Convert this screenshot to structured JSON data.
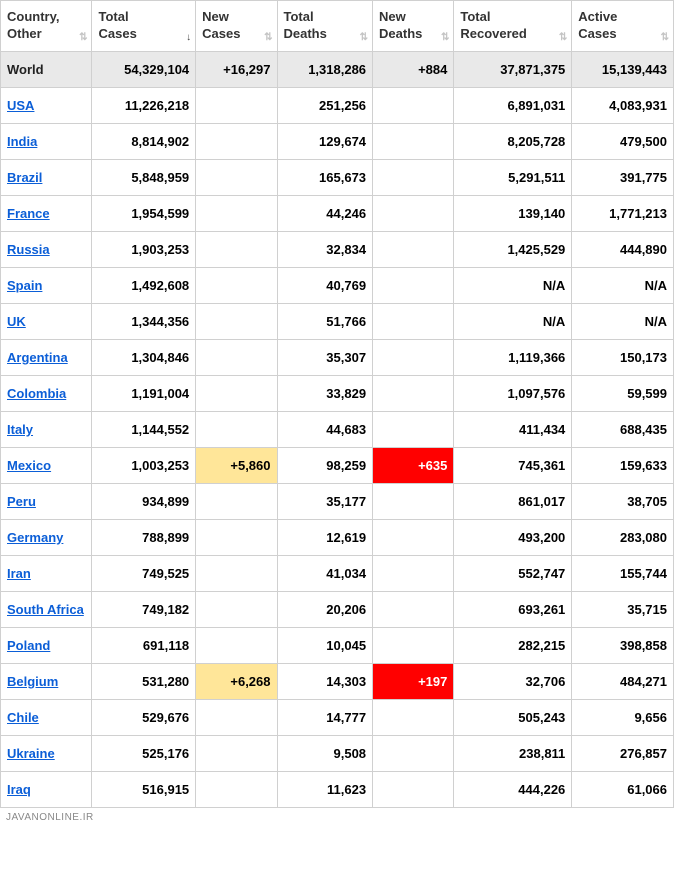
{
  "columns": [
    {
      "label": "Country,\nOther",
      "sort": "none"
    },
    {
      "label": "Total\nCases",
      "sort": "desc"
    },
    {
      "label": "New\nCases",
      "sort": "none"
    },
    {
      "label": "Total\nDeaths",
      "sort": "none"
    },
    {
      "label": "New\nDeaths",
      "sort": "none"
    },
    {
      "label": "Total\nRecovered",
      "sort": "none"
    },
    {
      "label": "Active\nCases",
      "sort": "none"
    }
  ],
  "world": {
    "country": "World",
    "total_cases": "54,329,104",
    "new_cases": "+16,297",
    "total_deaths": "1,318,286",
    "new_deaths": "+884",
    "total_recovered": "37,871,375",
    "active_cases": "15,139,443"
  },
  "rows": [
    {
      "country": "USA",
      "total_cases": "11,226,218",
      "new_cases": "",
      "total_deaths": "251,256",
      "new_deaths": "",
      "total_recovered": "6,891,031",
      "active_cases": "4,083,931"
    },
    {
      "country": "India",
      "total_cases": "8,814,902",
      "new_cases": "",
      "total_deaths": "129,674",
      "new_deaths": "",
      "total_recovered": "8,205,728",
      "active_cases": "479,500"
    },
    {
      "country": "Brazil",
      "total_cases": "5,848,959",
      "new_cases": "",
      "total_deaths": "165,673",
      "new_deaths": "",
      "total_recovered": "5,291,511",
      "active_cases": "391,775"
    },
    {
      "country": "France",
      "total_cases": "1,954,599",
      "new_cases": "",
      "total_deaths": "44,246",
      "new_deaths": "",
      "total_recovered": "139,140",
      "active_cases": "1,771,213"
    },
    {
      "country": "Russia",
      "total_cases": "1,903,253",
      "new_cases": "",
      "total_deaths": "32,834",
      "new_deaths": "",
      "total_recovered": "1,425,529",
      "active_cases": "444,890"
    },
    {
      "country": "Spain",
      "total_cases": "1,492,608",
      "new_cases": "",
      "total_deaths": "40,769",
      "new_deaths": "",
      "total_recovered": "N/A",
      "active_cases": "N/A"
    },
    {
      "country": "UK",
      "total_cases": "1,344,356",
      "new_cases": "",
      "total_deaths": "51,766",
      "new_deaths": "",
      "total_recovered": "N/A",
      "active_cases": "N/A"
    },
    {
      "country": "Argentina",
      "total_cases": "1,304,846",
      "new_cases": "",
      "total_deaths": "35,307",
      "new_deaths": "",
      "total_recovered": "1,119,366",
      "active_cases": "150,173"
    },
    {
      "country": "Colombia",
      "total_cases": "1,191,004",
      "new_cases": "",
      "total_deaths": "33,829",
      "new_deaths": "",
      "total_recovered": "1,097,576",
      "active_cases": "59,599"
    },
    {
      "country": "Italy",
      "total_cases": "1,144,552",
      "new_cases": "",
      "total_deaths": "44,683",
      "new_deaths": "",
      "total_recovered": "411,434",
      "active_cases": "688,435"
    },
    {
      "country": "Mexico",
      "total_cases": "1,003,253",
      "new_cases": "+5,860",
      "new_cases_hl": "yellow",
      "total_deaths": "98,259",
      "new_deaths": "+635",
      "new_deaths_hl": "red",
      "total_recovered": "745,361",
      "active_cases": "159,633"
    },
    {
      "country": "Peru",
      "total_cases": "934,899",
      "new_cases": "",
      "total_deaths": "35,177",
      "new_deaths": "",
      "total_recovered": "861,017",
      "active_cases": "38,705"
    },
    {
      "country": "Germany",
      "total_cases": "788,899",
      "new_cases": "",
      "total_deaths": "12,619",
      "new_deaths": "",
      "total_recovered": "493,200",
      "active_cases": "283,080"
    },
    {
      "country": "Iran",
      "total_cases": "749,525",
      "new_cases": "",
      "total_deaths": "41,034",
      "new_deaths": "",
      "total_recovered": "552,747",
      "active_cases": "155,744"
    },
    {
      "country": "South Africa",
      "total_cases": "749,182",
      "new_cases": "",
      "total_deaths": "20,206",
      "new_deaths": "",
      "total_recovered": "693,261",
      "active_cases": "35,715"
    },
    {
      "country": "Poland",
      "total_cases": "691,118",
      "new_cases": "",
      "total_deaths": "10,045",
      "new_deaths": "",
      "total_recovered": "282,215",
      "active_cases": "398,858"
    },
    {
      "country": "Belgium",
      "total_cases": "531,280",
      "new_cases": "+6,268",
      "new_cases_hl": "yellow",
      "total_deaths": "14,303",
      "new_deaths": "+197",
      "new_deaths_hl": "red",
      "total_recovered": "32,706",
      "active_cases": "484,271"
    },
    {
      "country": "Chile",
      "total_cases": "529,676",
      "new_cases": "",
      "total_deaths": "14,777",
      "new_deaths": "",
      "total_recovered": "505,243",
      "active_cases": "9,656"
    },
    {
      "country": "Ukraine",
      "total_cases": "525,176",
      "new_cases": "",
      "total_deaths": "9,508",
      "new_deaths": "",
      "total_recovered": "238,811",
      "active_cases": "276,857"
    },
    {
      "country": "Iraq",
      "total_cases": "516,915",
      "new_cases": "",
      "total_deaths": "11,623",
      "new_deaths": "",
      "total_recovered": "444,226",
      "active_cases": "61,066"
    }
  ],
  "footer": "JAVANONLINE.IR",
  "colors": {
    "link": "#0b5ed7",
    "border": "#d0d0d0",
    "world_bg": "#e9e9e9",
    "hl_yellow": "#ffe699",
    "hl_red": "#ff0000",
    "hl_red_text": "#ffffff",
    "sort_icon": "#c4c4c4"
  }
}
